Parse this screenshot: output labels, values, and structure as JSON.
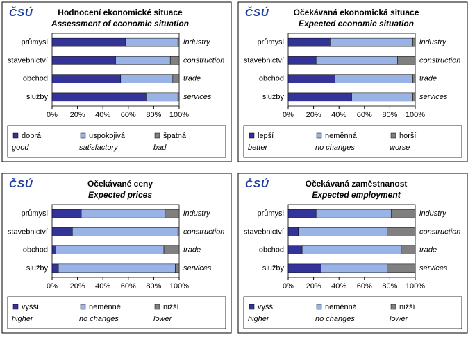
{
  "chart_data": [
    {
      "type": "stacked-barh",
      "logo": "ČSÚ",
      "title": "Hodnocení  ekonomické situace",
      "subtitle": "Assessment of economic situation",
      "categories": [
        "průmysl",
        "stavebnictví",
        "obchod",
        "služby"
      ],
      "categories_en": [
        "industry",
        "construction",
        "trade",
        "services"
      ],
      "series": [
        {
          "name": "dobrá",
          "name_en": "good",
          "color": "#333399",
          "values": [
            58,
            50,
            54,
            74
          ]
        },
        {
          "name": "uspokojivá",
          "name_en": "satisfactory",
          "color": "#99b3e6",
          "values": [
            41,
            43,
            41,
            25
          ]
        },
        {
          "name": "špatná",
          "name_en": "bad",
          "color": "#808080",
          "values": [
            1,
            7,
            5,
            1
          ]
        }
      ],
      "xlim": [
        0,
        100
      ],
      "xticks": [
        {
          "value": 0,
          "label": "0%"
        },
        {
          "value": 20,
          "label": "20%"
        },
        {
          "value": 40,
          "label": "40%"
        },
        {
          "value": 60,
          "label": "60%"
        },
        {
          "value": 80,
          "label": "80%"
        },
        {
          "value": 100,
          "label": "100%"
        }
      ]
    },
    {
      "type": "stacked-barh",
      "logo": "ČSÚ",
      "title": "Očekávaná  ekonomická situace",
      "subtitle": "Expected economic situation",
      "categories": [
        "průmysl",
        "stavebnictví",
        "obchod",
        "služby"
      ],
      "categories_en": [
        "industry",
        "construction",
        "trade",
        "services"
      ],
      "series": [
        {
          "name": "lepší",
          "name_en": "better",
          "color": "#333399",
          "values": [
            33,
            22,
            37,
            50
          ]
        },
        {
          "name": "neměnná",
          "name_en": "no changes",
          "color": "#99b3e6",
          "values": [
            65,
            64,
            61,
            48
          ]
        },
        {
          "name": "horší",
          "name_en": "worse",
          "color": "#808080",
          "values": [
            2,
            14,
            2,
            2
          ]
        }
      ],
      "xlim": [
        0,
        100
      ],
      "xticks": [
        {
          "value": 0,
          "label": "0%"
        },
        {
          "value": 20,
          "label": "20%"
        },
        {
          "value": 40,
          "label": "40%"
        },
        {
          "value": 60,
          "label": "60%"
        },
        {
          "value": 80,
          "label": "80%"
        },
        {
          "value": 100,
          "label": "100%"
        }
      ]
    },
    {
      "type": "stacked-barh",
      "logo": "ČSÚ",
      "title": "Očekávané ceny",
      "subtitle": "Expected prices",
      "categories": [
        "průmysl",
        "stavebnictví",
        "obchod",
        "služby"
      ],
      "categories_en": [
        "industry",
        "construction",
        "trade",
        "services"
      ],
      "series": [
        {
          "name": "vyšší",
          "name_en": "higher",
          "color": "#333399",
          "values": [
            23,
            16,
            3,
            5
          ]
        },
        {
          "name": "neměnné",
          "name_en": "no changes",
          "color": "#99b3e6",
          "values": [
            66,
            83,
            85,
            92
          ]
        },
        {
          "name": "nižší",
          "name_en": "lower",
          "color": "#808080",
          "values": [
            11,
            1,
            12,
            3
          ]
        }
      ],
      "xlim": [
        0,
        100
      ],
      "xticks": [
        {
          "value": 0,
          "label": "0%"
        },
        {
          "value": 20,
          "label": "20%"
        },
        {
          "value": 40,
          "label": "40%"
        },
        {
          "value": 60,
          "label": "60%"
        },
        {
          "value": 80,
          "label": "80%"
        },
        {
          "value": 100,
          "label": "100%"
        }
      ]
    },
    {
      "type": "stacked-barh",
      "logo": "ČSÚ",
      "title": "Očekávaná zaměstnanost",
      "subtitle": "Expected employment",
      "categories": [
        "průmysl",
        "stavebnictví",
        "obchod",
        "služby"
      ],
      "categories_en": [
        "industry",
        "construction",
        "trade",
        "services"
      ],
      "series": [
        {
          "name": "vyšší",
          "name_en": "higher",
          "color": "#333399",
          "values": [
            22,
            8,
            11,
            26
          ]
        },
        {
          "name": "neměnná",
          "name_en": "no changes",
          "color": "#99b3e6",
          "values": [
            59,
            70,
            78,
            52
          ]
        },
        {
          "name": "nižší",
          "name_en": "lower",
          "color": "#808080",
          "values": [
            19,
            22,
            11,
            22
          ]
        }
      ],
      "xlim": [
        0,
        100
      ],
      "xticks": [
        {
          "value": 0,
          "label": "0%"
        },
        {
          "value": 20,
          "label": "20%"
        },
        {
          "value": 40,
          "label": "40%"
        },
        {
          "value": 60,
          "label": "60%"
        },
        {
          "value": 80,
          "label": "80%"
        },
        {
          "value": 100,
          "label": "100%"
        }
      ]
    }
  ]
}
